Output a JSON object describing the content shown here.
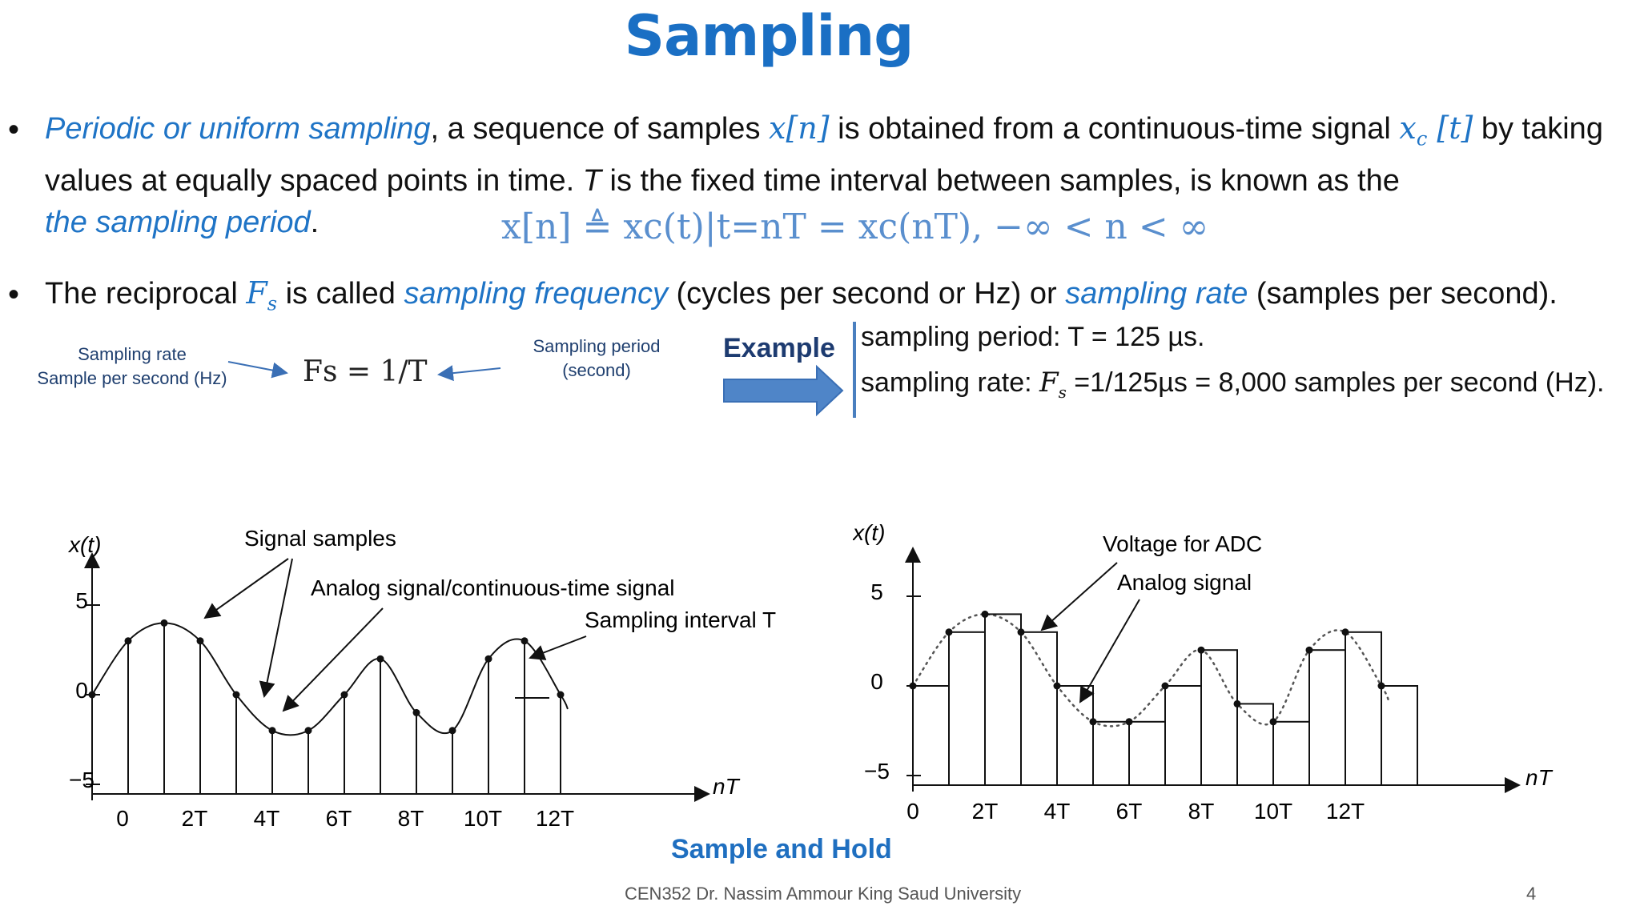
{
  "title": "Sampling",
  "bullet1": {
    "dot": "•",
    "term": "Periodic or uniform sampling",
    "t1": ", a sequence of samples ",
    "xn": "x[n]",
    "t2": " is obtained from a continuous-time signal ",
    "xct": "x",
    "xc_sub": "c",
    "xct_arg": " [t]",
    "t3": " by taking values at equally spaced points in time. ",
    "T": "T",
    "t4": " is the fixed time interval between samples, is known as the ",
    "term2": "the sampling period",
    "t5": "."
  },
  "equation": "x[n] ≜ xc(t)|t=nT = xc(nT),    −∞ < n < ∞",
  "bullet2": {
    "dot": "•",
    "t1": "The reciprocal ",
    "Fs": "F",
    "Fs_sub": "s",
    "t2": " is called ",
    "term1": "sampling frequency",
    "t3": " (cycles per second or Hz) or ",
    "term2": "sampling rate",
    "t4": " (samples per second)."
  },
  "sampling_rate_label": {
    "line1": "Sampling rate",
    "line2": "Sample per second (Hz)"
  },
  "sampling_period_label": {
    "line1": "Sampling period",
    "line2": "(second)"
  },
  "fs_equation": "Fs = 1/T",
  "example": {
    "label": "Example",
    "line1": "sampling period: T = 125 µs.",
    "line2_pre": "sampling rate: ",
    "line2_var": "F",
    "line2_sub": "s",
    "line2_post": " =1/125µs = 8,000 samples per second (Hz)."
  },
  "left_plot": {
    "ylabel": "x(t)",
    "xlabel": "nT",
    "yticks": [
      "5",
      "0",
      "−5"
    ],
    "xticks": [
      "0",
      "2T",
      "4T",
      "6T",
      "8T",
      "10T",
      "12T"
    ],
    "annotations": [
      "Signal samples",
      "Analog signal/continuous-time signal",
      "Sampling interval T"
    ],
    "samples": [
      0,
      3,
      4,
      3,
      0,
      -2,
      -2,
      0,
      2,
      -1,
      -2,
      2,
      3,
      0
    ]
  },
  "right_plot": {
    "ylabel": "x(t)",
    "xlabel": "nT",
    "yticks": [
      "5",
      "0",
      "−5"
    ],
    "xticks": [
      "0",
      "2T",
      "4T",
      "6T",
      "8T",
      "10T",
      "12T"
    ],
    "annotations": [
      "Voltage for ADC",
      "Analog signal"
    ]
  },
  "caption": "Sample and Hold",
  "footer": "CEN352 Dr. Nassim Ammour King Saud University",
  "page_number": "4"
}
